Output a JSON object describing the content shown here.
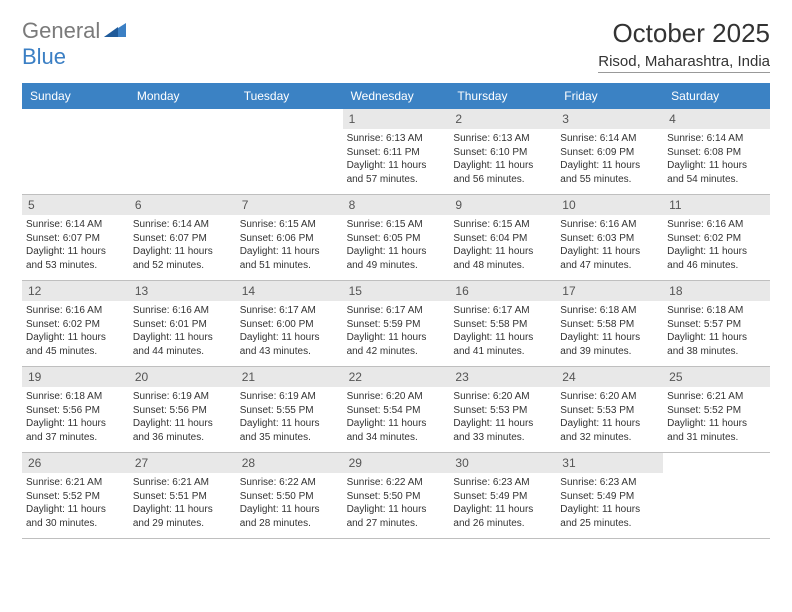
{
  "brand": {
    "part1": "General",
    "part2": "Blue"
  },
  "title": "October 2025",
  "location": "Risod, Maharashtra, India",
  "colors": {
    "header_bg": "#3b82c4",
    "header_text": "#ffffff",
    "daynum_bg": "#e8e8e8",
    "border": "#bfbfbf",
    "brand_gray": "#7a7a7a",
    "brand_blue": "#3b7fc4",
    "text": "#333333"
  },
  "day_headers": [
    "Sunday",
    "Monday",
    "Tuesday",
    "Wednesday",
    "Thursday",
    "Friday",
    "Saturday"
  ],
  "grid": {
    "leading_blanks": 3,
    "days": [
      {
        "num": "1",
        "sunrise": "6:13 AM",
        "sunset": "6:11 PM",
        "daylight": "11 hours and 57 minutes."
      },
      {
        "num": "2",
        "sunrise": "6:13 AM",
        "sunset": "6:10 PM",
        "daylight": "11 hours and 56 minutes."
      },
      {
        "num": "3",
        "sunrise": "6:14 AM",
        "sunset": "6:09 PM",
        "daylight": "11 hours and 55 minutes."
      },
      {
        "num": "4",
        "sunrise": "6:14 AM",
        "sunset": "6:08 PM",
        "daylight": "11 hours and 54 minutes."
      },
      {
        "num": "5",
        "sunrise": "6:14 AM",
        "sunset": "6:07 PM",
        "daylight": "11 hours and 53 minutes."
      },
      {
        "num": "6",
        "sunrise": "6:14 AM",
        "sunset": "6:07 PM",
        "daylight": "11 hours and 52 minutes."
      },
      {
        "num": "7",
        "sunrise": "6:15 AM",
        "sunset": "6:06 PM",
        "daylight": "11 hours and 51 minutes."
      },
      {
        "num": "8",
        "sunrise": "6:15 AM",
        "sunset": "6:05 PM",
        "daylight": "11 hours and 49 minutes."
      },
      {
        "num": "9",
        "sunrise": "6:15 AM",
        "sunset": "6:04 PM",
        "daylight": "11 hours and 48 minutes."
      },
      {
        "num": "10",
        "sunrise": "6:16 AM",
        "sunset": "6:03 PM",
        "daylight": "11 hours and 47 minutes."
      },
      {
        "num": "11",
        "sunrise": "6:16 AM",
        "sunset": "6:02 PM",
        "daylight": "11 hours and 46 minutes."
      },
      {
        "num": "12",
        "sunrise": "6:16 AM",
        "sunset": "6:02 PM",
        "daylight": "11 hours and 45 minutes."
      },
      {
        "num": "13",
        "sunrise": "6:16 AM",
        "sunset": "6:01 PM",
        "daylight": "11 hours and 44 minutes."
      },
      {
        "num": "14",
        "sunrise": "6:17 AM",
        "sunset": "6:00 PM",
        "daylight": "11 hours and 43 minutes."
      },
      {
        "num": "15",
        "sunrise": "6:17 AM",
        "sunset": "5:59 PM",
        "daylight": "11 hours and 42 minutes."
      },
      {
        "num": "16",
        "sunrise": "6:17 AM",
        "sunset": "5:58 PM",
        "daylight": "11 hours and 41 minutes."
      },
      {
        "num": "17",
        "sunrise": "6:18 AM",
        "sunset": "5:58 PM",
        "daylight": "11 hours and 39 minutes."
      },
      {
        "num": "18",
        "sunrise": "6:18 AM",
        "sunset": "5:57 PM",
        "daylight": "11 hours and 38 minutes."
      },
      {
        "num": "19",
        "sunrise": "6:18 AM",
        "sunset": "5:56 PM",
        "daylight": "11 hours and 37 minutes."
      },
      {
        "num": "20",
        "sunrise": "6:19 AM",
        "sunset": "5:56 PM",
        "daylight": "11 hours and 36 minutes."
      },
      {
        "num": "21",
        "sunrise": "6:19 AM",
        "sunset": "5:55 PM",
        "daylight": "11 hours and 35 minutes."
      },
      {
        "num": "22",
        "sunrise": "6:20 AM",
        "sunset": "5:54 PM",
        "daylight": "11 hours and 34 minutes."
      },
      {
        "num": "23",
        "sunrise": "6:20 AM",
        "sunset": "5:53 PM",
        "daylight": "11 hours and 33 minutes."
      },
      {
        "num": "24",
        "sunrise": "6:20 AM",
        "sunset": "5:53 PM",
        "daylight": "11 hours and 32 minutes."
      },
      {
        "num": "25",
        "sunrise": "6:21 AM",
        "sunset": "5:52 PM",
        "daylight": "11 hours and 31 minutes."
      },
      {
        "num": "26",
        "sunrise": "6:21 AM",
        "sunset": "5:52 PM",
        "daylight": "11 hours and 30 minutes."
      },
      {
        "num": "27",
        "sunrise": "6:21 AM",
        "sunset": "5:51 PM",
        "daylight": "11 hours and 29 minutes."
      },
      {
        "num": "28",
        "sunrise": "6:22 AM",
        "sunset": "5:50 PM",
        "daylight": "11 hours and 28 minutes."
      },
      {
        "num": "29",
        "sunrise": "6:22 AM",
        "sunset": "5:50 PM",
        "daylight": "11 hours and 27 minutes."
      },
      {
        "num": "30",
        "sunrise": "6:23 AM",
        "sunset": "5:49 PM",
        "daylight": "11 hours and 26 minutes."
      },
      {
        "num": "31",
        "sunrise": "6:23 AM",
        "sunset": "5:49 PM",
        "daylight": "11 hours and 25 minutes."
      }
    ],
    "trailing_blanks": 1
  },
  "labels": {
    "sunrise": "Sunrise:",
    "sunset": "Sunset:",
    "daylight": "Daylight:"
  }
}
